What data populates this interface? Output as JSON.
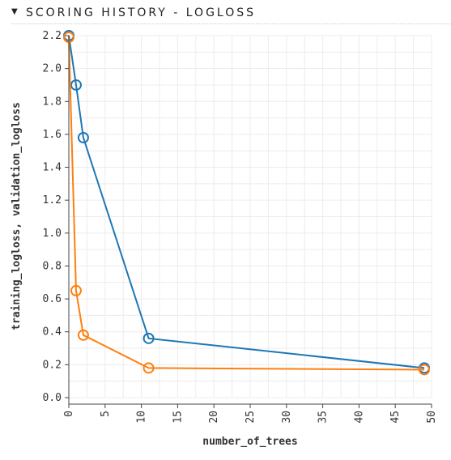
{
  "header": {
    "title": "SCORING HISTORY - LOGLOSS",
    "caret_icon": "caret-down-icon"
  },
  "chart_data": {
    "type": "line",
    "xlabel": "number_of_trees",
    "ylabel": "training_logloss, validation_logloss",
    "xlim": [
      0,
      50
    ],
    "ylim": [
      0,
      2.2
    ],
    "x_ticks": [
      0,
      5,
      10,
      15,
      20,
      25,
      30,
      35,
      40,
      45,
      50
    ],
    "y_ticks": [
      0.0,
      0.2,
      0.4,
      0.6,
      0.8,
      1.0,
      1.2,
      1.4,
      1.6,
      1.8,
      2.0,
      2.2
    ],
    "y_tick_labels": [
      "0.0",
      "0.2",
      "0.4",
      "0.6",
      "0.8",
      "1.0",
      "1.2",
      "1.4",
      "1.6",
      "1.8",
      "2.0",
      "2.2"
    ],
    "grid": true,
    "series": [
      {
        "color": "#1f77b4",
        "x": [
          0,
          1,
          2,
          11,
          49
        ],
        "y": [
          2.2,
          1.9,
          1.58,
          0.36,
          0.18
        ]
      },
      {
        "color": "#ff7f0e",
        "x": [
          0,
          1,
          2,
          11,
          49
        ],
        "y": [
          2.19,
          0.65,
          0.38,
          0.18,
          0.17
        ]
      }
    ]
  }
}
